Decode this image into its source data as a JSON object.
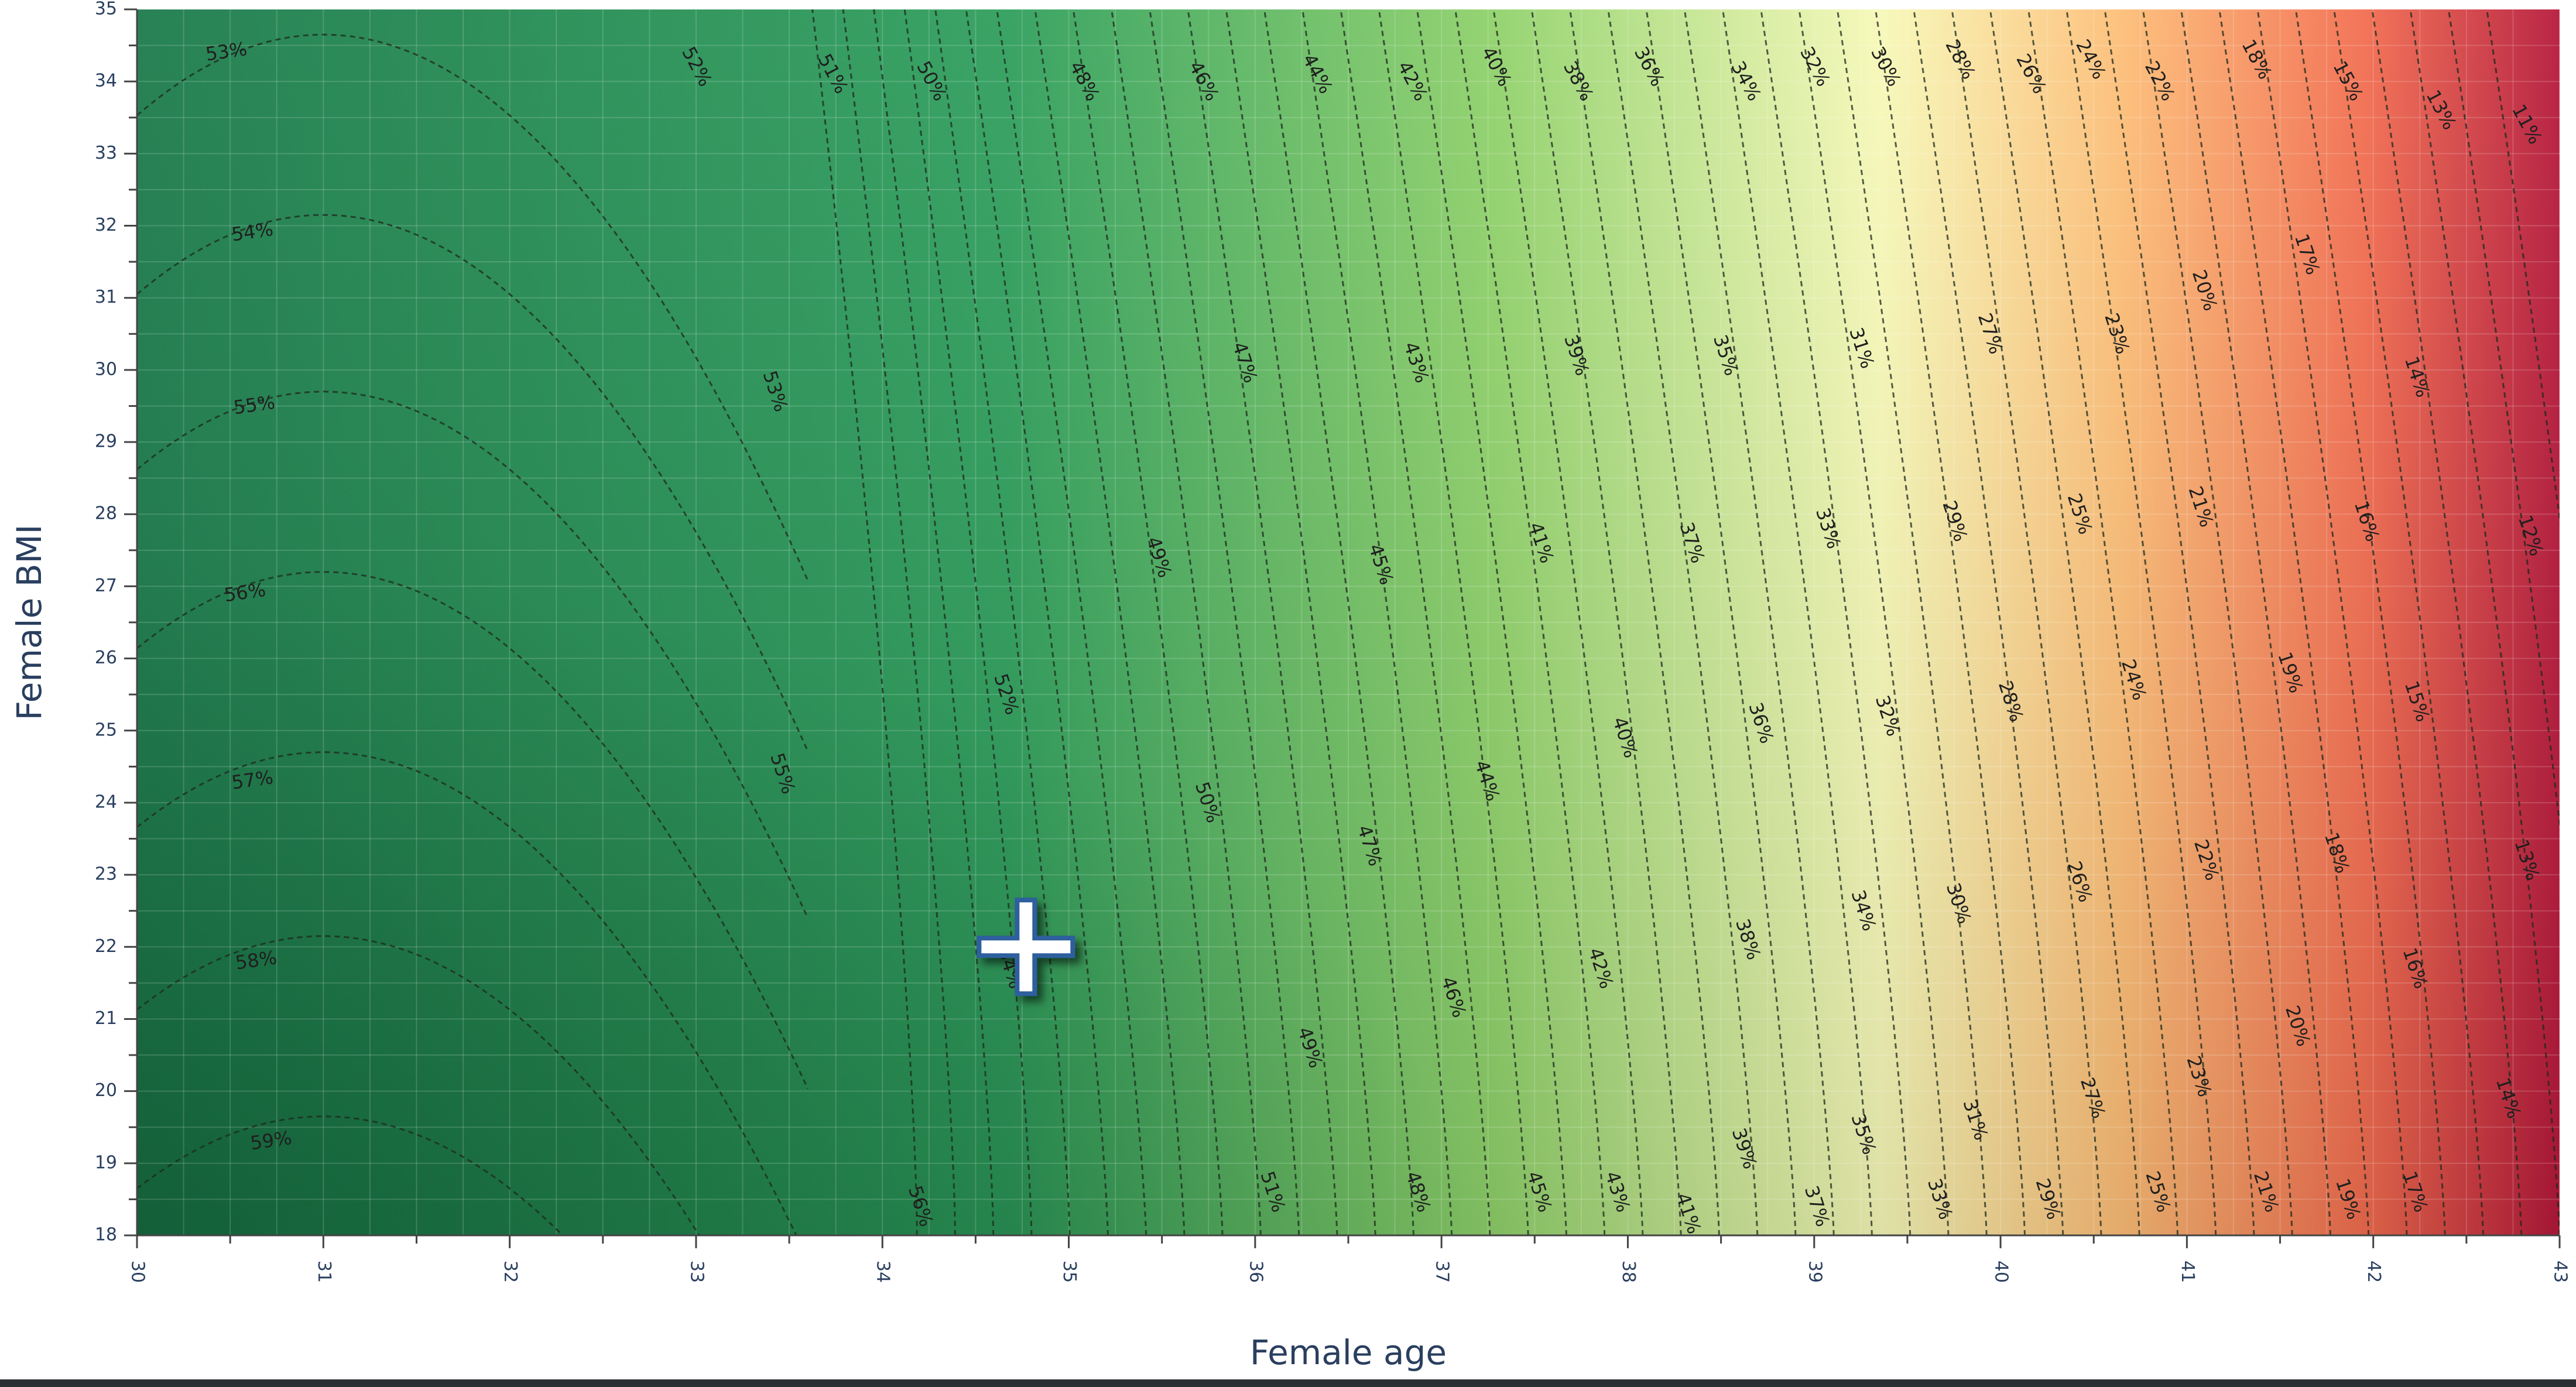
{
  "chart_data": {
    "type": "heatmap",
    "xlabel": "Female age",
    "ylabel": "Female BMI",
    "xlim": [
      30,
      43
    ],
    "ylim": [
      18,
      35
    ],
    "x_ticks": [
      30,
      31,
      32,
      33,
      34,
      35,
      36,
      37,
      38,
      39,
      40,
      41,
      42,
      43
    ],
    "y_ticks": [
      18,
      19,
      20,
      21,
      22,
      23,
      24,
      25,
      26,
      27,
      28,
      29,
      30,
      31,
      32,
      33,
      34,
      35
    ],
    "colorscale": [
      "#1a7a4a",
      "#2e9e5b",
      "#8fd16a",
      "#f7f9b8",
      "#fdbd76",
      "#f26c4f",
      "#b5183a"
    ],
    "z_unit": "%",
    "grid": true,
    "contours": {
      "levels": [
        11,
        12,
        13,
        14,
        15,
        16,
        17,
        18,
        19,
        20,
        21,
        22,
        23,
        24,
        25,
        26,
        27,
        28,
        29,
        30,
        31,
        32,
        33,
        34,
        35,
        36,
        37,
        38,
        39,
        40,
        41,
        42,
        43,
        44,
        45,
        46,
        47,
        48,
        49,
        50,
        51,
        52,
        53,
        54,
        55,
        56,
        57,
        58,
        59
      ],
      "labels": [
        {
          "text": "53%",
          "x": 30.48,
          "y": 34.4
        },
        {
          "text": "54%",
          "x": 30.62,
          "y": 31.9
        },
        {
          "text": "55%",
          "x": 30.63,
          "y": 29.5
        },
        {
          "text": "56%",
          "x": 30.58,
          "y": 26.9
        },
        {
          "text": "57%",
          "x": 30.62,
          "y": 24.3
        },
        {
          "text": "58%",
          "x": 30.64,
          "y": 21.8
        },
        {
          "text": "59%",
          "x": 30.72,
          "y": 19.3
        },
        {
          "text": "52%",
          "x": 33.0,
          "y": 34.2
        },
        {
          "text": "51%",
          "x": 33.73,
          "y": 34.1
        },
        {
          "text": "50%",
          "x": 34.26,
          "y": 34.0
        },
        {
          "text": "48%",
          "x": 35.08,
          "y": 34.0
        },
        {
          "text": "46%",
          "x": 35.72,
          "y": 34.0
        },
        {
          "text": "44%",
          "x": 36.33,
          "y": 34.1
        },
        {
          "text": "42%",
          "x": 36.84,
          "y": 34.0
        },
        {
          "text": "40%",
          "x": 37.29,
          "y": 34.2
        },
        {
          "text": "38%",
          "x": 37.73,
          "y": 34.0
        },
        {
          "text": "36%",
          "x": 38.11,
          "y": 34.2
        },
        {
          "text": "34%",
          "x": 38.63,
          "y": 34.0
        },
        {
          "text": "32%",
          "x": 39.0,
          "y": 34.2
        },
        {
          "text": "30%",
          "x": 39.38,
          "y": 34.2
        },
        {
          "text": "28%",
          "x": 39.78,
          "y": 34.3
        },
        {
          "text": "26%",
          "x": 40.16,
          "y": 34.1
        },
        {
          "text": "24%",
          "x": 40.48,
          "y": 34.3
        },
        {
          "text": "22%",
          "x": 40.85,
          "y": 34.0
        },
        {
          "text": "18%",
          "x": 41.37,
          "y": 34.3
        },
        {
          "text": "15%",
          "x": 41.86,
          "y": 34.0
        },
        {
          "text": "13%",
          "x": 42.36,
          "y": 33.6
        },
        {
          "text": "11%",
          "x": 42.82,
          "y": 33.4
        },
        {
          "text": "53%",
          "x": 33.42,
          "y": 29.7
        },
        {
          "text": "47%",
          "x": 35.94,
          "y": 30.1
        },
        {
          "text": "43%",
          "x": 36.86,
          "y": 30.1
        },
        {
          "text": "39%",
          "x": 37.72,
          "y": 30.2
        },
        {
          "text": "35%",
          "x": 38.52,
          "y": 30.2
        },
        {
          "text": "31%",
          "x": 39.25,
          "y": 30.3
        },
        {
          "text": "27%",
          "x": 39.94,
          "y": 30.5
        },
        {
          "text": "23%",
          "x": 40.62,
          "y": 30.5
        },
        {
          "text": "20%",
          "x": 41.09,
          "y": 31.1
        },
        {
          "text": "17%",
          "x": 41.64,
          "y": 31.6
        },
        {
          "text": "14%",
          "x": 42.23,
          "y": 29.9
        },
        {
          "text": "49%",
          "x": 35.48,
          "y": 27.4
        },
        {
          "text": "45%",
          "x": 36.67,
          "y": 27.3
        },
        {
          "text": "41%",
          "x": 37.53,
          "y": 27.6
        },
        {
          "text": "37%",
          "x": 38.34,
          "y": 27.6
        },
        {
          "text": "33%",
          "x": 39.07,
          "y": 27.8
        },
        {
          "text": "29%",
          "x": 39.75,
          "y": 27.9
        },
        {
          "text": "25%",
          "x": 40.42,
          "y": 28.0
        },
        {
          "text": "21%",
          "x": 41.07,
          "y": 28.1
        },
        {
          "text": "16%",
          "x": 41.96,
          "y": 27.9
        },
        {
          "text": "12%",
          "x": 42.84,
          "y": 27.7
        },
        {
          "text": "52%",
          "x": 34.66,
          "y": 25.5
        },
        {
          "text": "40%",
          "x": 37.98,
          "y": 24.9
        },
        {
          "text": "36%",
          "x": 38.71,
          "y": 25.1
        },
        {
          "text": "32%",
          "x": 39.39,
          "y": 25.2
        },
        {
          "text": "28%",
          "x": 40.05,
          "y": 25.4
        },
        {
          "text": "24%",
          "x": 40.71,
          "y": 25.7
        },
        {
          "text": "19%",
          "x": 41.55,
          "y": 25.8
        },
        {
          "text": "15%",
          "x": 42.23,
          "y": 25.4
        },
        {
          "text": "55%",
          "x": 33.46,
          "y": 24.4
        },
        {
          "text": "50%",
          "x": 35.74,
          "y": 24.0
        },
        {
          "text": "44%",
          "x": 37.24,
          "y": 24.3
        },
        {
          "text": "47%",
          "x": 36.61,
          "y": 23.4
        },
        {
          "text": "22%",
          "x": 41.1,
          "y": 23.2
        },
        {
          "text": "26%",
          "x": 40.42,
          "y": 22.9
        },
        {
          "text": "30%",
          "x": 39.77,
          "y": 22.6
        },
        {
          "text": "34%",
          "x": 39.26,
          "y": 22.5
        },
        {
          "text": "38%",
          "x": 38.64,
          "y": 22.1
        },
        {
          "text": "42%",
          "x": 37.85,
          "y": 21.7
        },
        {
          "text": "46%",
          "x": 37.06,
          "y": 21.3
        },
        {
          "text": "18%",
          "x": 41.8,
          "y": 23.3
        },
        {
          "text": "13%",
          "x": 42.82,
          "y": 23.2
        },
        {
          "text": "16%",
          "x": 42.22,
          "y": 21.7
        },
        {
          "text": "20%",
          "x": 41.59,
          "y": 20.9
        },
        {
          "text": "23%",
          "x": 41.06,
          "y": 20.2
        },
        {
          "text": "27%",
          "x": 40.49,
          "y": 19.9
        },
        {
          "text": "31%",
          "x": 39.86,
          "y": 19.6
        },
        {
          "text": "35%",
          "x": 39.26,
          "y": 19.4
        },
        {
          "text": "39%",
          "x": 38.62,
          "y": 19.2
        },
        {
          "text": "49%",
          "x": 36.29,
          "y": 20.6
        },
        {
          "text": "14%",
          "x": 42.72,
          "y": 19.9
        },
        {
          "text": "56%",
          "x": 34.2,
          "y": 18.4
        },
        {
          "text": "51%",
          "x": 36.09,
          "y": 18.6
        },
        {
          "text": "48%",
          "x": 36.87,
          "y": 18.6
        },
        {
          "text": "45%",
          "x": 37.52,
          "y": 18.6
        },
        {
          "text": "43%",
          "x": 37.94,
          "y": 18.6
        },
        {
          "text": "41%",
          "x": 38.32,
          "y": 18.3
        },
        {
          "text": "37%",
          "x": 39.01,
          "y": 18.4
        },
        {
          "text": "33%",
          "x": 39.67,
          "y": 18.5
        },
        {
          "text": "29%",
          "x": 40.25,
          "y": 18.5
        },
        {
          "text": "25%",
          "x": 40.84,
          "y": 18.6
        },
        {
          "text": "21%",
          "x": 41.42,
          "y": 18.6
        },
        {
          "text": "19%",
          "x": 41.86,
          "y": 18.5
        },
        {
          "text": "17%",
          "x": 42.22,
          "y": 18.6
        },
        {
          "text": "54%",
          "x": 34.68,
          "y": 21.7
        }
      ]
    }
  },
  "cursor": {
    "icon": "crosshair-plus-icon",
    "x": 34.77,
    "y": 22.0
  }
}
